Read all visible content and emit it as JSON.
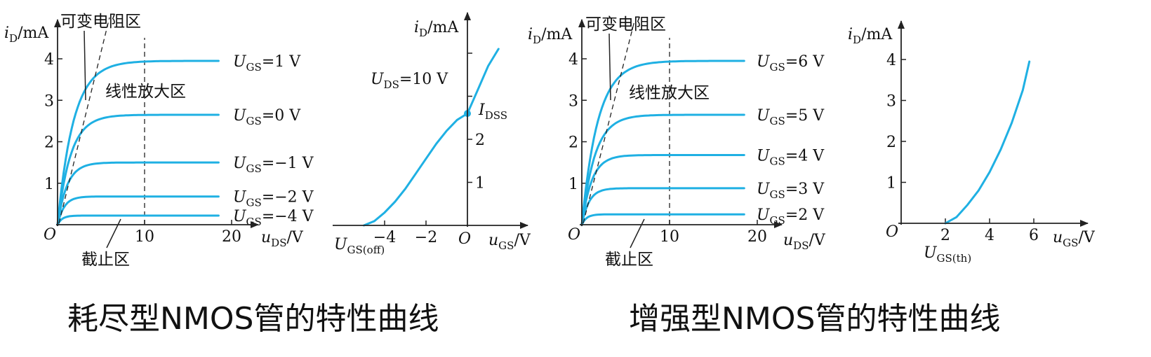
{
  "captions": {
    "depletion": "耗尽型NMOS管的特性曲线",
    "enhancement": "增强型NMOS管的特性曲线"
  },
  "colors": {
    "curve": "#1fb0e3",
    "axis": "#222222"
  },
  "annotations": {
    "ohmic_region": "可变电阻区",
    "saturation_region": "线性放大区",
    "cutoff_region": "截止区"
  },
  "chart_data": [
    {
      "id": "depletion-output",
      "type": "line",
      "ylabel": "iD/mA",
      "xlabel": "uDS/V",
      "origin_label": "O",
      "xlim": [
        0,
        22
      ],
      "ylim": [
        0,
        4.6
      ],
      "x_ticks": [
        10,
        20
      ],
      "y_ticks": [
        1,
        2,
        3,
        4
      ],
      "vertical_dashed_x": 10,
      "series": [
        {
          "name": "UGS=1 V",
          "sub": "GS",
          "value_text": "=1 V",
          "sat": 3.95,
          "knee": 5.5
        },
        {
          "name": "UGS=0 V",
          "sub": "GS",
          "value_text": "=0 V",
          "sat": 2.65,
          "knee": 4.5
        },
        {
          "name": "UGS=−1 V",
          "sub": "GS",
          "value_text": "=−1 V",
          "sat": 1.5,
          "knee": 3.3
        },
        {
          "name": "UGS=−2 V",
          "sub": "GS",
          "value_text": "=−2 V",
          "sat": 0.68,
          "knee": 2.3
        },
        {
          "name": "UGS=−4 V",
          "sub": "GS",
          "value_text": "=−4 V",
          "sat": 0.22,
          "knee": 1.6
        }
      ]
    },
    {
      "id": "depletion-transfer",
      "type": "line",
      "ylabel": "iD/mA",
      "xlabel": "uGS/V",
      "origin_label": "O",
      "xlim": [
        -6.2,
        2.5
      ],
      "ylim": [
        0,
        4.5
      ],
      "x_ticks": [
        -4,
        -2
      ],
      "x_tick_labels": [
        "−4",
        "−2"
      ],
      "y_ticks": [
        1,
        2
      ],
      "condition": "UDS=10 V",
      "cutoff_label": "UGS(off)",
      "idss_label": "IDSS",
      "idss_value": 2.6,
      "ugs_off": -5,
      "points": [
        [
          -5,
          0
        ],
        [
          -4.5,
          0.1
        ],
        [
          -4,
          0.3
        ],
        [
          -3.5,
          0.55
        ],
        [
          -3,
          0.85
        ],
        [
          -2.5,
          1.2
        ],
        [
          -2,
          1.55
        ],
        [
          -1.5,
          1.9
        ],
        [
          -1,
          2.2
        ],
        [
          -0.5,
          2.45
        ],
        [
          0,
          2.6
        ],
        [
          0.5,
          3.15
        ],
        [
          1,
          3.7
        ],
        [
          1.5,
          4.1
        ]
      ]
    },
    {
      "id": "enhancement-output",
      "type": "line",
      "ylabel": "iD/mA",
      "xlabel": "uDS/V",
      "origin_label": "O",
      "xlim": [
        0,
        22
      ],
      "ylim": [
        0,
        4.6
      ],
      "x_ticks": [
        10,
        20
      ],
      "y_ticks": [
        1,
        2,
        3,
        4
      ],
      "vertical_dashed_x": 10,
      "series": [
        {
          "name": "UGS=6 V",
          "sub": "GS",
          "value_text": "=6 V",
          "sat": 3.95,
          "knee": 5.5
        },
        {
          "name": "UGS=5 V",
          "sub": "GS",
          "value_text": "=5 V",
          "sat": 2.65,
          "knee": 4.5
        },
        {
          "name": "UGS=4 V",
          "sub": "GS",
          "value_text": "=4 V",
          "sat": 1.68,
          "knee": 3.4
        },
        {
          "name": "UGS=3 V",
          "sub": "GS",
          "value_text": "=3 V",
          "sat": 0.88,
          "knee": 2.5
        },
        {
          "name": "UGS=2 V",
          "sub": "GS",
          "value_text": "=2 V",
          "sat": 0.25,
          "knee": 1.6
        }
      ]
    },
    {
      "id": "enhancement-transfer",
      "type": "line",
      "ylabel": "iD/mA",
      "xlabel": "uGS/V",
      "origin_label": "O",
      "xlim": [
        0,
        7.6
      ],
      "ylim": [
        0,
        4.6
      ],
      "x_ticks": [
        2,
        4,
        6
      ],
      "y_ticks": [
        1,
        2,
        3,
        4
      ],
      "threshold_label": "UGS(th)",
      "ugs_th": 2,
      "points": [
        [
          2,
          0
        ],
        [
          2.5,
          0.15
        ],
        [
          3,
          0.45
        ],
        [
          3.5,
          0.8
        ],
        [
          4,
          1.25
        ],
        [
          4.5,
          1.8
        ],
        [
          5,
          2.45
        ],
        [
          5.5,
          3.25
        ],
        [
          5.8,
          3.95
        ]
      ]
    }
  ]
}
